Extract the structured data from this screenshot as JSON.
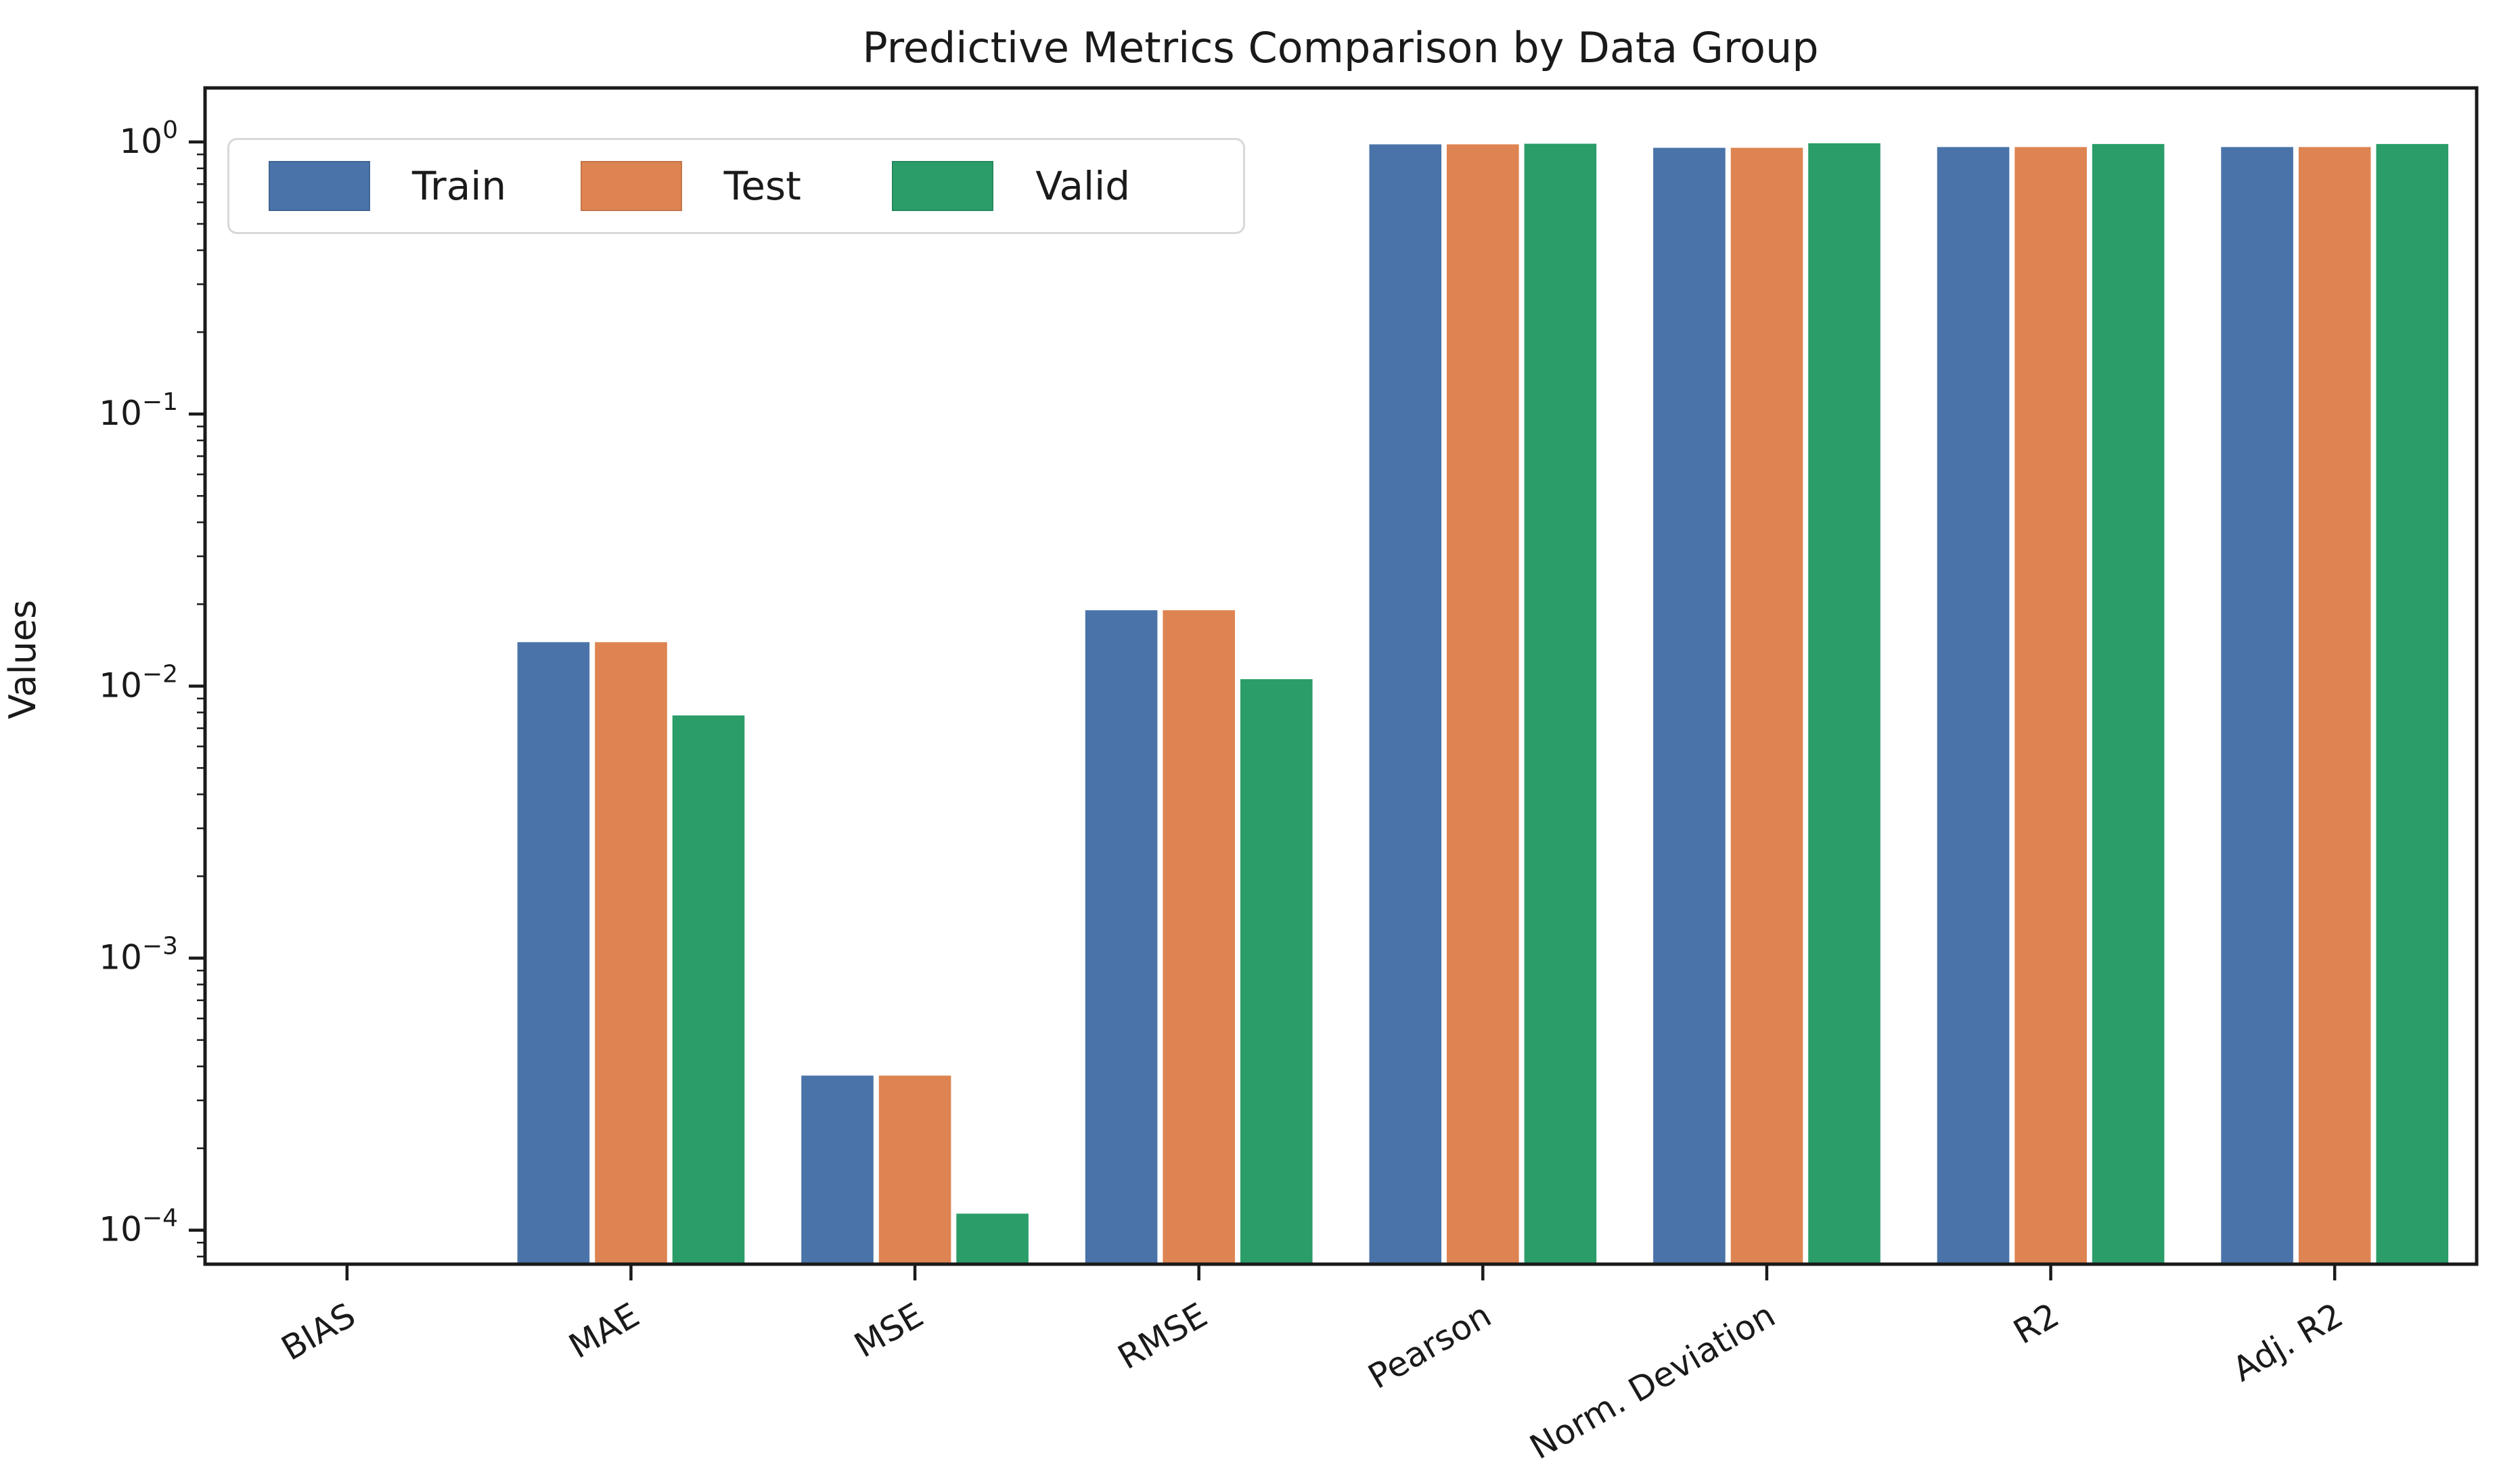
{
  "figure": {
    "background": "#ffffff",
    "text_color": "#1a1a1a",
    "axis_color": "#1a1a1a"
  },
  "chart_data": {
    "type": "bar",
    "title": "Predictive Metrics Comparison by Data Group",
    "xlabel": "",
    "ylabel": "Values",
    "yscale": "log",
    "ylim": [
      7.5e-05,
      1.58
    ],
    "grid": false,
    "categories": [
      "BIAS",
      "MAE",
      "MSE",
      "RMSE",
      "Pearson",
      "Norm. Deviation",
      "R2",
      "Adj. R2"
    ],
    "series": [
      {
        "name": "Train",
        "color": "#4a74a9",
        "values": [
          0,
          0.0145,
          0.00037,
          0.019,
          0.98,
          0.952,
          0.958,
          0.958
        ]
      },
      {
        "name": "Test",
        "color": "#de8452",
        "values": [
          0,
          0.0145,
          0.00037,
          0.019,
          0.98,
          0.952,
          0.958,
          0.958
        ]
      },
      {
        "name": "Valid",
        "color": "#2a9d69",
        "values": [
          0,
          0.0078,
          0.000115,
          0.0106,
          0.985,
          0.989,
          0.983,
          0.983
        ]
      }
    ],
    "ytick_values": [
      1,
      0.1,
      0.01,
      0.001,
      0.0001
    ],
    "ytick_labels": [
      "10^0",
      "10^−1",
      "10^−2",
      "10^−3",
      "10^−4"
    ],
    "xtick_rotation_deg": 30,
    "legend": {
      "position": "upper left",
      "labels": [
        "Train",
        "Test",
        "Valid"
      ]
    },
    "note": "BIAS bars have ~zero value and are not visible on the log scale"
  }
}
